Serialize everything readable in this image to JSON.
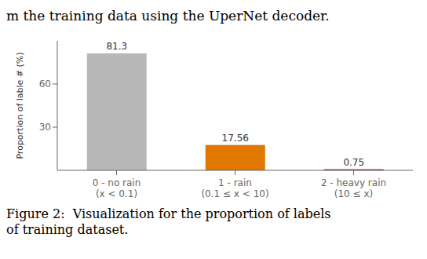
{
  "chart_data": {
    "type": "bar",
    "annotations": [
      "m the training data using the UperNet decoder.",
      "Figure 2:  Visualization for the proportion of labels\nof training dataset."
    ],
    "categories": [
      "0 - no rain\n(x < 0.1)",
      "1 - rain\n(0.1 ≤ x < 10)",
      "2 - heavy rain\n(10 ≤ x)"
    ],
    "values": [
      81.3,
      17.56,
      0.75
    ],
    "colors": [
      "#b8b8b8",
      "#e07800",
      "#8b0000"
    ],
    "ylabel": "Proportion of lable # (%)",
    "ylim": [
      0,
      90
    ],
    "yticks": [
      30,
      60
    ],
    "grid": false,
    "data_labels": true
  }
}
